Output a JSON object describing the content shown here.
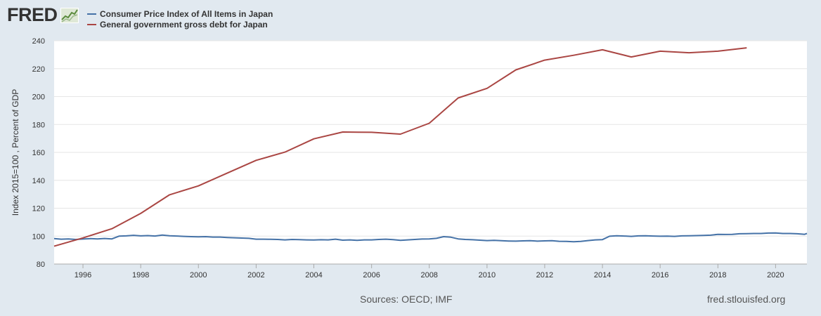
{
  "logo": {
    "text": "FRED",
    "icon": "fred-chart-icon"
  },
  "sources": "Sources: OECD; IMF",
  "site": "fred.stlouisfed.org",
  "colors": {
    "cpi": "#4572a7",
    "debt": "#aa4643",
    "plot_bg": "#ffffff",
    "page_bg": "#e1e9f0",
    "grid": "#e6e6e6"
  },
  "chart_data": {
    "type": "line",
    "ylabel": "Index 2015=100 , Percent of GDP",
    "xlabel": "",
    "title": "",
    "xlim": [
      "1995-01-01",
      "2021-02-01"
    ],
    "ylim": [
      80,
      240
    ],
    "yticks": [
      80,
      100,
      120,
      140,
      160,
      180,
      200,
      220,
      240
    ],
    "xticks": [
      "1996",
      "1998",
      "2000",
      "2002",
      "2004",
      "2006",
      "2008",
      "2010",
      "2012",
      "2014",
      "2016",
      "2018",
      "2020"
    ],
    "grid": true,
    "legend_position": "top-left",
    "series": [
      {
        "name": "Consumer Price Index of All Items in Japan",
        "color": "#4572a7",
        "points": [
          [
            "1995-01-01",
            98.2
          ],
          [
            "1995-04-01",
            97.8
          ],
          [
            "1995-07-01",
            98.0
          ],
          [
            "1995-10-01",
            97.6
          ],
          [
            "1996-01-01",
            97.9
          ],
          [
            "1996-04-01",
            98.2
          ],
          [
            "1996-07-01",
            98.0
          ],
          [
            "1996-10-01",
            98.3
          ],
          [
            "1997-01-01",
            98.0
          ],
          [
            "1997-04-01",
            100.0
          ],
          [
            "1997-07-01",
            100.2
          ],
          [
            "1997-10-01",
            100.6
          ],
          [
            "1998-01-01",
            100.2
          ],
          [
            "1998-04-01",
            100.4
          ],
          [
            "1998-07-01",
            100.1
          ],
          [
            "1998-10-01",
            100.8
          ],
          [
            "1999-01-01",
            100.3
          ],
          [
            "1999-04-01",
            100.1
          ],
          [
            "1999-07-01",
            99.8
          ],
          [
            "1999-10-01",
            99.6
          ],
          [
            "2000-01-01",
            99.5
          ],
          [
            "2000-04-01",
            99.6
          ],
          [
            "2000-07-01",
            99.3
          ],
          [
            "2000-10-01",
            99.3
          ],
          [
            "2001-01-01",
            99.0
          ],
          [
            "2001-04-01",
            98.8
          ],
          [
            "2001-07-01",
            98.6
          ],
          [
            "2001-10-01",
            98.4
          ],
          [
            "2002-01-01",
            97.8
          ],
          [
            "2002-04-01",
            97.8
          ],
          [
            "2002-07-01",
            97.7
          ],
          [
            "2002-10-01",
            97.6
          ],
          [
            "2003-01-01",
            97.3
          ],
          [
            "2003-04-01",
            97.6
          ],
          [
            "2003-07-01",
            97.5
          ],
          [
            "2003-10-01",
            97.3
          ],
          [
            "2004-01-01",
            97.2
          ],
          [
            "2004-04-01",
            97.4
          ],
          [
            "2004-07-01",
            97.3
          ],
          [
            "2004-10-01",
            97.8
          ],
          [
            "2005-01-01",
            97.1
          ],
          [
            "2005-04-01",
            97.3
          ],
          [
            "2005-07-01",
            97.0
          ],
          [
            "2005-10-01",
            97.3
          ],
          [
            "2006-01-01",
            97.3
          ],
          [
            "2006-04-01",
            97.6
          ],
          [
            "2006-07-01",
            97.8
          ],
          [
            "2006-10-01",
            97.5
          ],
          [
            "2007-01-01",
            97.0
          ],
          [
            "2007-04-01",
            97.3
          ],
          [
            "2007-07-01",
            97.6
          ],
          [
            "2007-10-01",
            97.9
          ],
          [
            "2008-01-01",
            98.0
          ],
          [
            "2008-04-01",
            98.4
          ],
          [
            "2008-07-01",
            99.6
          ],
          [
            "2008-10-01",
            99.2
          ],
          [
            "2009-01-01",
            98.0
          ],
          [
            "2009-04-01",
            97.6
          ],
          [
            "2009-07-01",
            97.4
          ],
          [
            "2009-10-01",
            97.1
          ],
          [
            "2010-01-01",
            96.8
          ],
          [
            "2010-04-01",
            97.0
          ],
          [
            "2010-07-01",
            96.7
          ],
          [
            "2010-10-01",
            96.5
          ],
          [
            "2011-01-01",
            96.4
          ],
          [
            "2011-04-01",
            96.6
          ],
          [
            "2011-07-01",
            96.7
          ],
          [
            "2011-10-01",
            96.4
          ],
          [
            "2012-01-01",
            96.6
          ],
          [
            "2012-04-01",
            96.7
          ],
          [
            "2012-07-01",
            96.3
          ],
          [
            "2012-10-01",
            96.2
          ],
          [
            "2013-01-01",
            96.0
          ],
          [
            "2013-04-01",
            96.2
          ],
          [
            "2013-07-01",
            96.8
          ],
          [
            "2013-10-01",
            97.3
          ],
          [
            "2014-01-01",
            97.5
          ],
          [
            "2014-04-01",
            99.9
          ],
          [
            "2014-07-01",
            100.3
          ],
          [
            "2014-10-01",
            100.1
          ],
          [
            "2015-01-01",
            99.8
          ],
          [
            "2015-04-01",
            100.2
          ],
          [
            "2015-07-01",
            100.3
          ],
          [
            "2015-10-01",
            100.1
          ],
          [
            "2016-01-01",
            99.9
          ],
          [
            "2016-04-01",
            100.0
          ],
          [
            "2016-07-01",
            99.8
          ],
          [
            "2016-10-01",
            100.2
          ],
          [
            "2017-01-01",
            100.3
          ],
          [
            "2017-04-01",
            100.4
          ],
          [
            "2017-07-01",
            100.5
          ],
          [
            "2017-10-01",
            100.7
          ],
          [
            "2018-01-01",
            101.3
          ],
          [
            "2018-04-01",
            101.2
          ],
          [
            "2018-07-01",
            101.3
          ],
          [
            "2018-10-01",
            101.7
          ],
          [
            "2019-01-01",
            101.8
          ],
          [
            "2019-04-01",
            101.9
          ],
          [
            "2019-07-01",
            101.9
          ],
          [
            "2019-10-01",
            102.2
          ],
          [
            "2020-01-01",
            102.3
          ],
          [
            "2020-04-01",
            101.9
          ],
          [
            "2020-07-01",
            101.9
          ],
          [
            "2020-10-01",
            101.7
          ],
          [
            "2021-01-01",
            101.3
          ],
          [
            "2021-02-01",
            101.9
          ]
        ]
      },
      {
        "name": "General government gross debt for Japan",
        "color": "#aa4643",
        "points": [
          [
            "1995-01-01",
            92.8
          ],
          [
            "1996-01-01",
            98.7
          ],
          [
            "1997-01-01",
            105.3
          ],
          [
            "1998-01-01",
            116.3
          ],
          [
            "1999-01-01",
            129.6
          ],
          [
            "2000-01-01",
            136.0
          ],
          [
            "2001-01-01",
            145.2
          ],
          [
            "2002-01-01",
            154.3
          ],
          [
            "2003-01-01",
            160.2
          ],
          [
            "2004-01-01",
            169.7
          ],
          [
            "2005-01-01",
            174.6
          ],
          [
            "2006-01-01",
            174.4
          ],
          [
            "2007-01-01",
            173.1
          ],
          [
            "2008-01-01",
            180.9
          ],
          [
            "2009-01-01",
            199.0
          ],
          [
            "2010-01-01",
            205.9
          ],
          [
            "2011-01-01",
            219.1
          ],
          [
            "2012-01-01",
            226.1
          ],
          [
            "2013-01-01",
            229.6
          ],
          [
            "2014-01-01",
            233.5
          ],
          [
            "2015-01-01",
            228.4
          ],
          [
            "2016-01-01",
            232.5
          ],
          [
            "2017-01-01",
            231.4
          ],
          [
            "2018-01-01",
            232.5
          ],
          [
            "2019-01-01",
            234.9
          ]
        ]
      }
    ]
  }
}
